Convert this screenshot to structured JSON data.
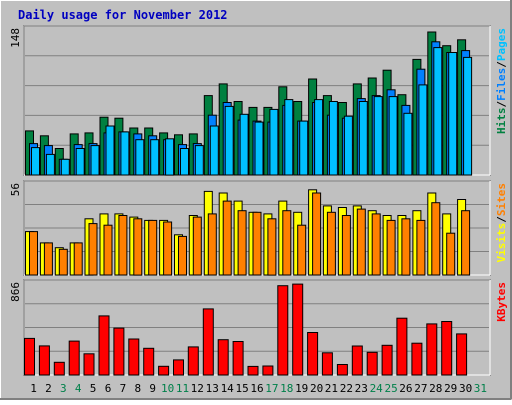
{
  "chart_data": [
    {
      "type": "bar",
      "title": "Daily usage for November 2012",
      "x": [
        1,
        2,
        3,
        4,
        5,
        6,
        7,
        8,
        9,
        10,
        11,
        12,
        13,
        14,
        15,
        16,
        17,
        18,
        19,
        20,
        21,
        22,
        23,
        24,
        25,
        26,
        27,
        28,
        29,
        30,
        31
      ],
      "weekend_days": [
        3,
        4,
        10,
        11,
        17,
        18,
        24,
        25,
        31
      ],
      "panels": [
        {
          "name": "hits-files-pages",
          "ymax": 148,
          "ymax_label": "148",
          "axis_labels": [
            "Hits",
            "Files",
            "Pages"
          ],
          "series": [
            {
              "name": "Hits",
              "color": "#008040",
              "values": [
                45,
                40,
                27,
                42,
                43,
                59,
                58,
                48,
                48,
                43,
                41,
                42,
                81,
                93,
                75,
                69,
                69,
                90,
                75,
                98,
                81,
                74,
                93,
                99,
                107,
                82,
                118,
                146,
                132,
                138,
                null
              ]
            },
            {
              "name": "Files",
              "color": "#0080ff",
              "values": [
                32,
                30,
                16,
                31,
                32,
                43,
                44,
                42,
                40,
                36,
                31,
                32,
                61,
                74,
                56,
                55,
                54,
                71,
                55,
                74,
                61,
                58,
                78,
                81,
                87,
                71,
                108,
                136,
                125,
                127,
                null
              ]
            },
            {
              "name": "Pages",
              "color": "#00c0ff",
              "values": [
                28,
                21,
                16,
                27,
                30,
                50,
                44,
                36,
                36,
                37,
                27,
                30,
                50,
                70,
                62,
                54,
                67,
                77,
                55,
                77,
                75,
                60,
                75,
                80,
                80,
                63,
                92,
                130,
                125,
                120,
                null
              ]
            }
          ]
        },
        {
          "name": "visits-sites",
          "ymax": 56,
          "ymax_label": "56",
          "axis_labels": [
            "Visits",
            "Sites"
          ],
          "series": [
            {
              "name": "Visits",
              "color": "#ffff00",
              "values": [
                27,
                20,
                17,
                20,
                35,
                38,
                38,
                36,
                34,
                34,
                25,
                37,
                52,
                51,
                46,
                39,
                38,
                46,
                39,
                53,
                43,
                42,
                43,
                40,
                37,
                37,
                40,
                51,
                38,
                47,
                null
              ]
            },
            {
              "name": "Sites",
              "color": "#ff8000",
              "values": [
                27,
                20,
                16,
                20,
                32,
                31,
                37,
                35,
                34,
                33,
                24,
                36,
                38,
                46,
                40,
                39,
                35,
                40,
                31,
                51,
                39,
                37,
                41,
                38,
                34,
                35,
                34,
                45,
                26,
                40,
                null
              ]
            }
          ]
        },
        {
          "name": "kbytes",
          "ymax": 866,
          "ymax_label": "866",
          "axis_labels": [
            "KBytes"
          ],
          "series": [
            {
              "name": "KBytes",
              "color": "#ff0000",
              "values": [
                348,
                277,
                121,
                323,
                202,
                562,
                446,
                343,
                254,
                83,
                144,
                267,
                629,
                336,
                319,
                82,
                86,
                850,
                865,
                404,
                211,
                100,
                276,
                216,
                283,
                541,
                303,
                486,
                509,
                391,
                null
              ]
            }
          ]
        }
      ],
      "colors": {
        "plot_bg": "#c0c0c0",
        "grid": "#808080",
        "title": "#0000c0",
        "weekday_label": "#000000",
        "weekend_label": "#00804a",
        "hits": "#008040",
        "files": "#0080ff",
        "pages": "#00c0ff",
        "visits": "#ffff00",
        "sites": "#ff8000",
        "kbytes": "#ff0000"
      }
    }
  ]
}
